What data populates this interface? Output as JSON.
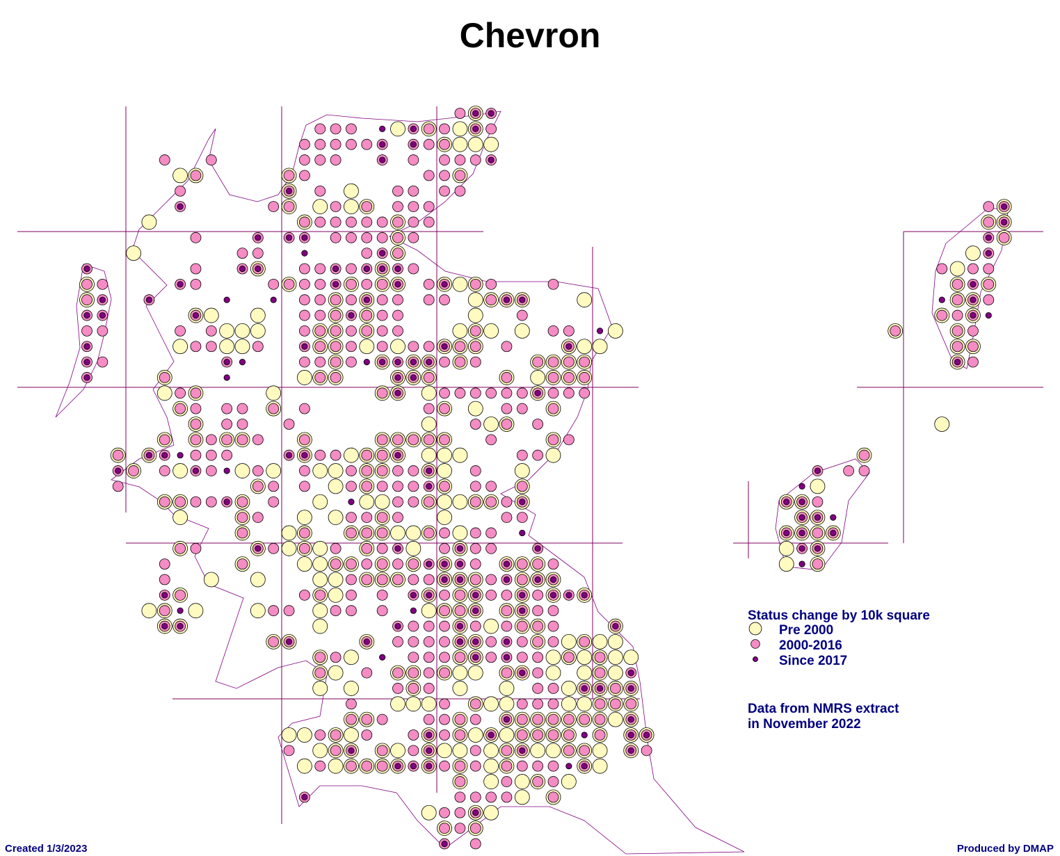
{
  "title": "Chevron",
  "legend": {
    "title": "Status change by 10k square",
    "items": [
      {
        "label": "Pre 2000",
        "color": "#fffac0"
      },
      {
        "label": "2000-2016",
        "color": "#f58cc4"
      },
      {
        "label": "Since 2017",
        "color": "#800080"
      }
    ]
  },
  "note": [
    "Data from NMRS extract",
    "in November 2022"
  ],
  "created": "Created 1/3/2023",
  "produced": "Produced by DMAP",
  "squares": [
    {
      "row": 0,
      "start": 24,
      "status": [
        2,
        7,
        6
      ]
    },
    {
      "row": 1,
      "start": 15,
      "status": [
        2,
        2,
        2,
        0,
        4,
        1,
        6,
        3,
        2,
        1,
        7,
        2
      ]
    },
    {
      "row": 2,
      "start": 14,
      "status": [
        2,
        2,
        2,
        2,
        2,
        6,
        0,
        6,
        2,
        3,
        1,
        1,
        1
      ]
    },
    {
      "row": 3,
      "start": 5,
      "status": [
        2,
        0,
        0,
        2,
        0,
        0,
        0,
        0,
        0,
        2,
        2,
        2,
        0,
        0,
        6,
        0,
        2,
        0,
        2,
        2,
        2,
        6
      ]
    },
    {
      "row": 4,
      "start": 6,
      "status": [
        1,
        3,
        0,
        0,
        0,
        0,
        0,
        3,
        2,
        0,
        0,
        0,
        0,
        0,
        0,
        0,
        2,
        2,
        3
      ]
    },
    {
      "row": 5,
      "start": 6,
      "status": [
        2,
        0,
        0,
        0,
        0,
        0,
        0,
        7,
        0,
        2,
        0,
        1,
        0,
        0,
        2,
        2,
        0,
        2,
        2
      ]
    },
    {
      "row": 6,
      "start": 6,
      "status": [
        6,
        0,
        0,
        0,
        0,
        0,
        2,
        3,
        0,
        1,
        2,
        1,
        3,
        0,
        2,
        2,
        2
      ]
    },
    {
      "row": 6,
      "start": 58,
      "status": [
        2,
        7
      ]
    },
    {
      "row": 7,
      "start": 4,
      "status": [
        1,
        0,
        0,
        0,
        0,
        0,
        0,
        0,
        0,
        0,
        3,
        2,
        2,
        2,
        2,
        2,
        3,
        2,
        2
      ]
    },
    {
      "row": 7,
      "start": 58,
      "status": [
        3,
        7
      ]
    },
    {
      "row": 8,
      "start": 7,
      "status": [
        2,
        0,
        0,
        0,
        6,
        0,
        6,
        6,
        0,
        2,
        2,
        2,
        2,
        3,
        2
      ]
    },
    {
      "row": 8,
      "start": 58,
      "status": [
        6,
        3
      ]
    },
    {
      "row": 9,
      "start": 3,
      "status": [
        1,
        0,
        0,
        0,
        0,
        0,
        0,
        2,
        2,
        0,
        0,
        4,
        0,
        0,
        0,
        2,
        6,
        3
      ]
    },
    {
      "row": 9,
      "start": 57,
      "status": [
        1,
        6
      ]
    },
    {
      "row": 10,
      "start": 0,
      "status": [
        6,
        0,
        0,
        0,
        0,
        0,
        0,
        2,
        0,
        0,
        6,
        7,
        0,
        0,
        2,
        2,
        6,
        2,
        6,
        7,
        6,
        2
      ]
    },
    {
      "row": 10,
      "start": 55,
      "status": [
        2,
        1,
        2,
        2
      ]
    },
    {
      "row": 11,
      "start": 0,
      "status": [
        3,
        2,
        0,
        0,
        0,
        0,
        6,
        2,
        0,
        0,
        0,
        0,
        2,
        3,
        2,
        2,
        6,
        3,
        2,
        3,
        7,
        0,
        2,
        7,
        1,
        3,
        2,
        0,
        0,
        0,
        2
      ]
    },
    {
      "row": 11,
      "start": 56,
      "status": [
        3,
        6,
        3
      ]
    },
    {
      "row": 12,
      "start": 0,
      "status": [
        3,
        6,
        0,
        0,
        6,
        0,
        0,
        0,
        0,
        4,
        0,
        0,
        4,
        0,
        2,
        2,
        3,
        2,
        7,
        2,
        2,
        0,
        2,
        2,
        0,
        1,
        3,
        7,
        7,
        0,
        0,
        0,
        1
      ]
    },
    {
      "row": 12,
      "start": 55,
      "status": [
        4,
        3,
        7,
        2
      ]
    },
    {
      "row": 13,
      "start": 0,
      "status": [
        6,
        6,
        0,
        0,
        0,
        0,
        0,
        7,
        1,
        0,
        0,
        1,
        0,
        0,
        2,
        2,
        3,
        6,
        3,
        2,
        2,
        0,
        0,
        0,
        0,
        1,
        0,
        0,
        2
      ]
    },
    {
      "row": 13,
      "start": 55,
      "status": [
        3,
        2,
        7,
        4
      ]
    },
    {
      "row": 14,
      "start": 0,
      "status": [
        2,
        2,
        0,
        0,
        0,
        0,
        2,
        0,
        2,
        1,
        1,
        1,
        0,
        0,
        2,
        3,
        3,
        2,
        3,
        2,
        2,
        0,
        0,
        0,
        1,
        3,
        1,
        0,
        1,
        0,
        2,
        2,
        0,
        4,
        1
      ]
    },
    {
      "row": 14,
      "start": 52,
      "status": [
        3,
        0,
        0,
        0,
        3,
        2
      ]
    },
    {
      "row": 15,
      "start": 0,
      "status": [
        6,
        0,
        0,
        0,
        0,
        0,
        1,
        2,
        2,
        1,
        1,
        2,
        0,
        0,
        6,
        3,
        3,
        2,
        1,
        2,
        1,
        2,
        2,
        7,
        3,
        3,
        0,
        2,
        0,
        0,
        0,
        7,
        1,
        1
      ]
    },
    {
      "row": 15,
      "start": 56,
      "status": [
        3,
        3
      ]
    },
    {
      "row": 16,
      "start": 0,
      "status": [
        6,
        2,
        0,
        0,
        0,
        0,
        0,
        0,
        0,
        6,
        4,
        0,
        0,
        0,
        2,
        2,
        3,
        2,
        4,
        7,
        6,
        7,
        7,
        2,
        3,
        2,
        0,
        0,
        0,
        3,
        3,
        3,
        3
      ]
    },
    {
      "row": 16,
      "start": 56,
      "status": [
        7,
        2
      ]
    },
    {
      "row": 17,
      "start": 0,
      "status": [
        6,
        0,
        0,
        0,
        0,
        3,
        0,
        0,
        0,
        4,
        0,
        0,
        0,
        0,
        1,
        3,
        3,
        0,
        0,
        0,
        7,
        7,
        3,
        0,
        0,
        0,
        0,
        3,
        0,
        1,
        3,
        3,
        3
      ]
    },
    {
      "row": 18,
      "start": 5,
      "status": [
        1,
        2,
        3,
        0,
        0,
        0,
        0,
        1,
        0,
        0,
        0,
        0,
        0,
        0,
        3,
        7,
        0,
        1,
        2,
        2,
        2,
        2,
        2,
        2,
        7,
        2,
        2,
        2
      ]
    },
    {
      "row": 19,
      "start": 6,
      "status": [
        3,
        2,
        0,
        2,
        2,
        0,
        3,
        0,
        2,
        0,
        0,
        0,
        0,
        0,
        0,
        0,
        2,
        3,
        0,
        1,
        0,
        2,
        2,
        0,
        3
      ]
    },
    {
      "row": 20,
      "start": 7,
      "status": [
        3,
        0,
        2,
        2,
        0,
        0,
        2,
        0,
        0,
        0,
        0,
        0,
        0,
        0,
        0,
        1,
        0,
        0,
        2,
        1,
        3,
        0,
        2
      ]
    },
    {
      "row": 20,
      "start": 55,
      "status": [
        1
      ]
    },
    {
      "row": 21,
      "start": 5,
      "status": [
        3,
        0,
        3,
        2,
        3,
        3,
        2,
        0,
        0,
        3,
        0,
        0,
        0,
        0,
        3,
        3,
        3,
        3,
        3,
        0,
        0,
        2,
        0,
        0,
        0,
        3,
        2
      ]
    },
    {
      "row": 22,
      "start": 2,
      "status": [
        3,
        0,
        7,
        6,
        4,
        2,
        2,
        2,
        0,
        0,
        0,
        6,
        7,
        2,
        2,
        1,
        3,
        3,
        7,
        0,
        1,
        1,
        1,
        0,
        0,
        0,
        2,
        2,
        1
      ]
    },
    {
      "row": 22,
      "start": 50,
      "status": [
        3
      ]
    },
    {
      "row": 23,
      "start": 2,
      "status": [
        6,
        3,
        0,
        2,
        1,
        6,
        2,
        4,
        1,
        2,
        1,
        0,
        2,
        1,
        1,
        2,
        3,
        3,
        2,
        2,
        7,
        1,
        0,
        2,
        0,
        0,
        1
      ]
    },
    {
      "row": 23,
      "start": 47,
      "status": [
        6,
        0,
        2,
        2
      ]
    },
    {
      "row": 24,
      "start": 2,
      "status": [
        2,
        0,
        0,
        0,
        0,
        0,
        0,
        0,
        0,
        3,
        2,
        0,
        2,
        0,
        1,
        2,
        3,
        2,
        2,
        2,
        6,
        3,
        0,
        2,
        2,
        0,
        3
      ]
    },
    {
      "row": 24,
      "start": 46,
      "status": [
        4,
        1
      ]
    },
    {
      "row": 25,
      "start": 5,
      "status": [
        3,
        3,
        2,
        2,
        6,
        3,
        0,
        2,
        0,
        0,
        1,
        0,
        4,
        1,
        1,
        2,
        2,
        3,
        1,
        1,
        3,
        3,
        2,
        7
      ]
    },
    {
      "row": 25,
      "start": 45,
      "status": [
        7,
        7,
        2
      ]
    },
    {
      "row": 26,
      "start": 6,
      "status": [
        1,
        0,
        0,
        0,
        3,
        2,
        0,
        0,
        1,
        0,
        1,
        2,
        2,
        3,
        2,
        0,
        0,
        1,
        0,
        0,
        0,
        2,
        2
      ]
    },
    {
      "row": 26,
      "start": 46,
      "status": [
        7,
        7,
        4
      ]
    },
    {
      "row": 27,
      "start": 10,
      "status": [
        3,
        0,
        0,
        1,
        3,
        0,
        0,
        3,
        3,
        3,
        1,
        1,
        3,
        2,
        1,
        2,
        2,
        0,
        4
      ]
    },
    {
      "row": 27,
      "start": 45,
      "status": [
        7,
        7,
        3,
        7
      ]
    },
    {
      "row": 28,
      "start": 6,
      "status": [
        3,
        2,
        0,
        0,
        0,
        7,
        2,
        1,
        3,
        1,
        2,
        0,
        3,
        2,
        6,
        1,
        0,
        2,
        7,
        2,
        2,
        0,
        0,
        6
      ]
    },
    {
      "row": 28,
      "start": 45,
      "status": [
        1,
        6,
        7
      ]
    },
    {
      "row": 29,
      "start": 5,
      "status": [
        2,
        0,
        0,
        0,
        0,
        3,
        0,
        0,
        0,
        1,
        1,
        3,
        3,
        2,
        3,
        2,
        3,
        6,
        7,
        6,
        2,
        0,
        7,
        3,
        3,
        2
      ]
    },
    {
      "row": 29,
      "start": 45,
      "status": [
        1,
        4,
        3
      ]
    },
    {
      "row": 30,
      "start": 5,
      "status": [
        2,
        0,
        0,
        1,
        0,
        0,
        1,
        0,
        0,
        0,
        1,
        1,
        2,
        3,
        3,
        3,
        2,
        2,
        7,
        7,
        3,
        2,
        6,
        3,
        7,
        7
      ]
    },
    {
      "row": 31,
      "start": 5,
      "status": [
        6,
        3,
        0,
        0,
        0,
        0,
        0,
        0,
        0,
        2,
        3,
        1,
        2,
        0,
        2,
        0,
        6,
        7,
        2,
        3,
        7,
        2,
        2,
        7,
        2,
        7,
        6,
        7
      ]
    },
    {
      "row": 32,
      "start": 4,
      "status": [
        1,
        3,
        4,
        1,
        0,
        0,
        0,
        1,
        2,
        2,
        0,
        1,
        2,
        2,
        0,
        2,
        0,
        4,
        1,
        3,
        3,
        7,
        0,
        3,
        7,
        2,
        2
      ]
    },
    {
      "row": 33,
      "start": 5,
      "status": [
        7,
        7,
        0,
        0,
        0,
        0,
        0,
        0,
        0,
        0,
        1,
        0,
        0,
        0,
        0,
        6,
        2,
        2,
        2,
        7,
        2,
        1,
        2,
        3,
        3,
        2,
        0,
        0,
        0,
        7
      ]
    },
    {
      "row": 34,
      "start": 12,
      "status": [
        3,
        7,
        0,
        0,
        0,
        0,
        7,
        0,
        2,
        2,
        2,
        2,
        7,
        7,
        2,
        6,
        2,
        3,
        2,
        1,
        3,
        1,
        1
      ]
    },
    {
      "row": 35,
      "start": 15,
      "status": [
        3,
        2,
        1,
        0,
        4,
        0,
        2,
        2,
        2,
        3,
        7,
        2,
        6,
        2,
        2,
        1,
        3,
        1,
        3,
        1,
        1
      ]
    },
    {
      "row": 36,
      "start": 15,
      "status": [
        3,
        1,
        0,
        2,
        0,
        3,
        3,
        2,
        3,
        1,
        1,
        0,
        3,
        7,
        2,
        1,
        0,
        1,
        3,
        1,
        6
      ]
    },
    {
      "row": 37,
      "start": 15,
      "status": [
        1,
        0,
        1,
        0,
        0,
        2,
        3,
        2,
        0,
        1,
        0,
        0,
        1,
        0,
        2,
        2,
        1,
        7,
        7,
        3,
        7
      ]
    },
    {
      "row": 38,
      "start": 17,
      "status": [
        2,
        0,
        0,
        1,
        1,
        1,
        2,
        0,
        3,
        1,
        1,
        2,
        2,
        2,
        1,
        1,
        3,
        3,
        3
      ]
    },
    {
      "row": 39,
      "start": 17,
      "status": [
        3,
        3,
        2,
        0,
        0,
        2,
        2,
        3,
        2,
        0,
        7,
        3,
        3,
        3,
        3,
        3,
        3,
        1,
        7
      ]
    },
    {
      "row": 40,
      "start": 13,
      "status": [
        1,
        1,
        2,
        3,
        1,
        2,
        0,
        0,
        2,
        7,
        2,
        3,
        1,
        7,
        1,
        3,
        3,
        3,
        3,
        4,
        3,
        0,
        7,
        7
      ]
    },
    {
      "row": 41,
      "start": 13,
      "status": [
        2,
        0,
        1,
        3,
        7,
        0,
        3,
        1,
        2,
        7,
        1,
        1,
        2,
        1,
        3,
        7,
        1,
        1,
        3,
        3,
        1,
        0,
        7,
        2
      ]
    },
    {
      "row": 42,
      "start": 14,
      "status": [
        1,
        2,
        1,
        3,
        3,
        3,
        7,
        6,
        7,
        2,
        3,
        2,
        1,
        3,
        2,
        2,
        2,
        4,
        7,
        1
      ]
    },
    {
      "row": 43,
      "start": 24,
      "status": [
        3,
        0,
        1,
        2,
        1,
        3,
        2,
        1
      ]
    },
    {
      "row": 44,
      "start": 14,
      "status": [
        6,
        0,
        0,
        0,
        0,
        0,
        0,
        0,
        0,
        0,
        2,
        2,
        2,
        2,
        1,
        0,
        3
      ]
    },
    {
      "row": 45,
      "start": 22,
      "status": [
        1,
        2,
        2,
        7,
        1
      ]
    },
    {
      "row": 46,
      "start": 23,
      "status": [
        3,
        2,
        3
      ]
    },
    {
      "row": 47,
      "start": 23,
      "status": [
        6,
        0,
        2
      ]
    }
  ]
}
